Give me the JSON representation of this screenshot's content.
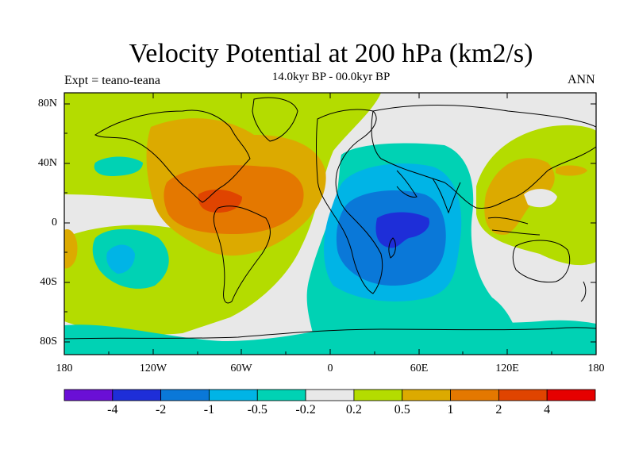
{
  "title": "Velocity Potential at 200 hPa (km2/s)",
  "subtitle": "14.0kyr BP - 00.0kyr BP",
  "experiment": "Expt = teano-teana",
  "season": "ANN",
  "lat_labels": [
    "80N",
    "40N",
    "0",
    "40S",
    "80S"
  ],
  "lon_labels": [
    "180",
    "120W",
    "60W",
    "0",
    "60E",
    "120E",
    "180"
  ],
  "colorbar": {
    "colors": [
      "#6a0fd6",
      "#1e2ed8",
      "#0a78d8",
      "#00b4e6",
      "#00d2b4",
      "#e8e8e8",
      "#b4dc00",
      "#dcaa00",
      "#e47800",
      "#e04400",
      "#e60000"
    ],
    "labels": [
      "-4",
      "-2",
      "-1",
      "-0.5",
      "-0.2",
      "0.2",
      "0.5",
      "1",
      "2",
      "4"
    ]
  }
}
